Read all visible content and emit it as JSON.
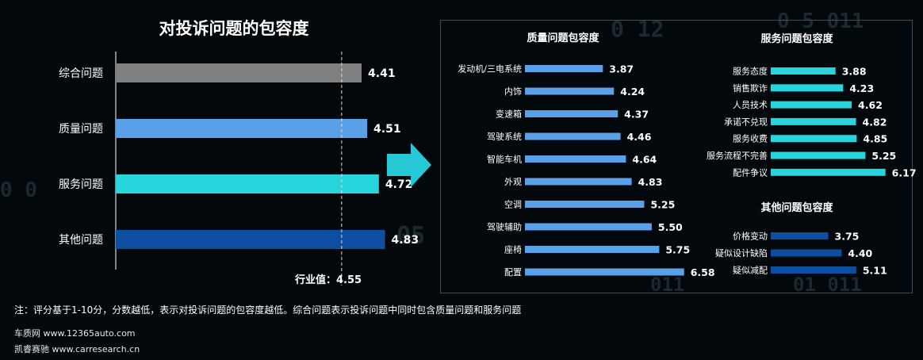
{
  "main": {
    "title": "对投诉问题的包容度",
    "reference_label": "行业值：4.55"
  },
  "chart_data": [
    {
      "type": "bar",
      "orientation": "horizontal",
      "title": "对投诉问题的包容度",
      "categories": [
        "综合问题",
        "质量问题",
        "服务问题",
        "其他问题"
      ],
      "values": [
        4.41,
        4.51,
        4.72,
        4.83
      ],
      "colors": [
        "#808080",
        "#5aa0e8",
        "#27d4dc",
        "#0d4ea0"
      ],
      "reference_line": {
        "label": "行业值：4.55",
        "value": 4.55
      }
    },
    {
      "type": "bar",
      "orientation": "horizontal",
      "title": "质量问题包容度",
      "categories": [
        "发动机/三电系统",
        "内饰",
        "变速箱",
        "驾驶系统",
        "智能车机",
        "外观",
        "空调",
        "驾驶辅助",
        "座椅",
        "配置"
      ],
      "values": [
        3.87,
        4.24,
        4.37,
        4.46,
        4.64,
        4.83,
        5.25,
        5.5,
        5.75,
        6.58
      ],
      "color": "#5aa0e8"
    },
    {
      "type": "bar",
      "orientation": "horizontal",
      "title": "服务问题包容度",
      "categories": [
        "服务态度",
        "销售欺诈",
        "人员技术",
        "承诺不兑现",
        "服务收费",
        "服务流程不完善",
        "配件争议"
      ],
      "values": [
        3.88,
        4.23,
        4.62,
        4.82,
        4.85,
        5.25,
        6.17
      ],
      "color": "#27d4dc"
    },
    {
      "type": "bar",
      "orientation": "horizontal",
      "title": "其他问题包容度",
      "categories": [
        "价格变动",
        "疑似设计缺陷",
        "疑似减配"
      ],
      "values": [
        3.75,
        4.4,
        5.11
      ],
      "color": "#0d4ea0"
    }
  ],
  "footer": {
    "note": "注：评分基于1-10分，分数越低，表示对投诉问题的包容度越低。综合问题表示投诉问题中同时包含质量问题和服务问题",
    "source1": "车质网 www.12365auto.com",
    "source2": "凯睿赛驰 www.carresearch.cn"
  }
}
